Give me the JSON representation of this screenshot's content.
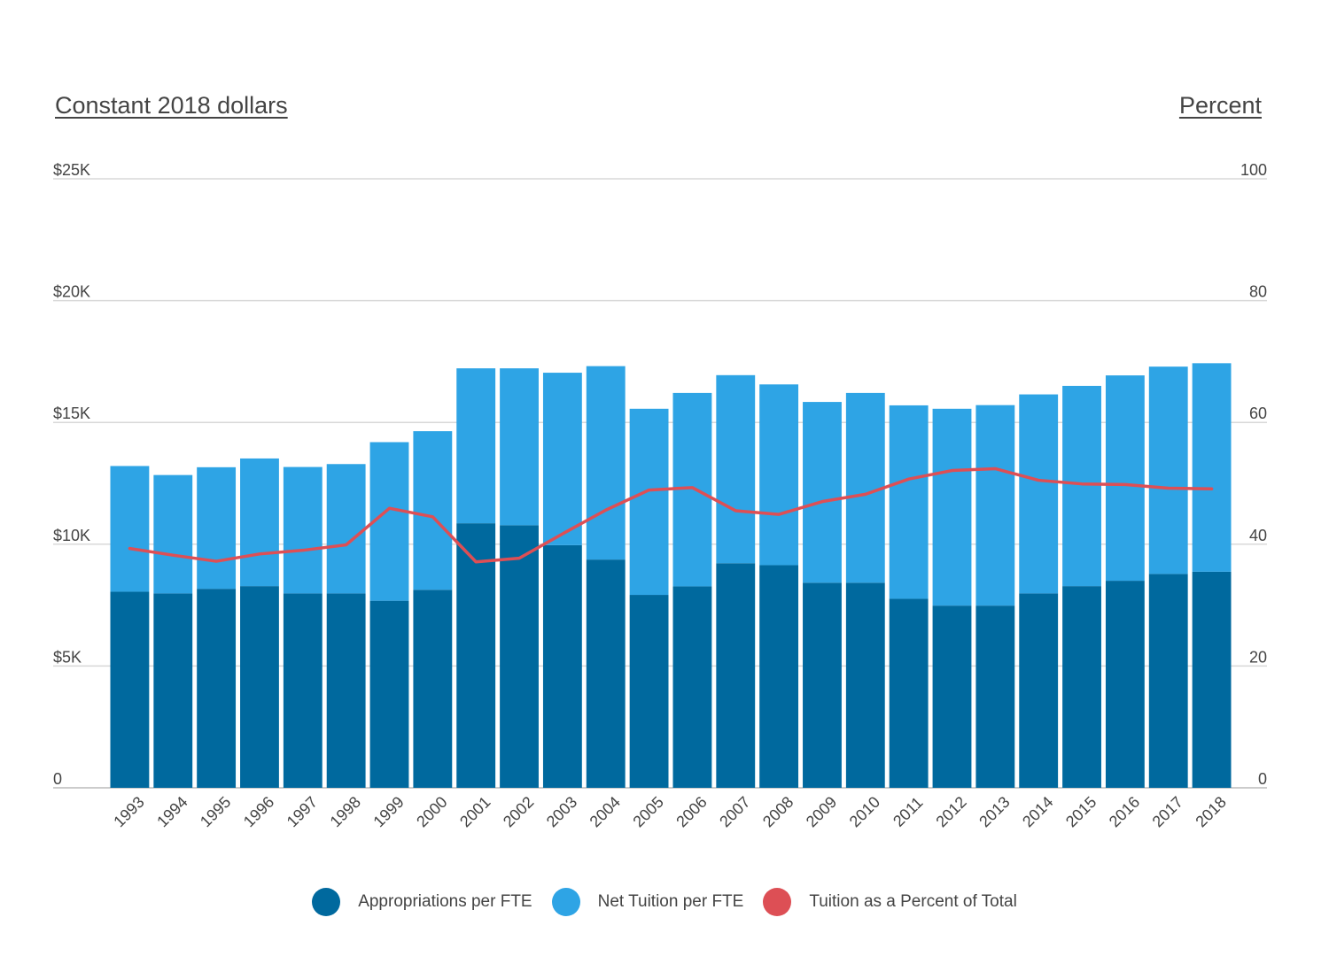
{
  "left_axis_title": "Constant 2018 dollars",
  "right_axis_title": "Percent",
  "colors": {
    "appropriations": "#00699E",
    "net_tuition": "#2EA4E5",
    "percent_line": "#DD4F55",
    "grid": "#D8D8D8",
    "axis_text": "#444444"
  },
  "legend": [
    {
      "label": "Appropriations per FTE",
      "color": "#00699E"
    },
    {
      "label": "Net Tuition per FTE",
      "color": "#2EA4E5"
    },
    {
      "label": "Tuition as a Percent of Total",
      "color": "#DD4F55"
    }
  ],
  "chart_data": {
    "type": "bar",
    "stacked": true,
    "categories": [
      "1993",
      "1994",
      "1995",
      "1996",
      "1997",
      "1998",
      "1999",
      "2000",
      "2001",
      "2002",
      "2003",
      "2004",
      "2005",
      "2006",
      "2007",
      "2008",
      "2009",
      "2010",
      "2011",
      "2012",
      "2013",
      "2014",
      "2015",
      "2016",
      "2017",
      "2018"
    ],
    "series": [
      {
        "name": "Appropriations per FTE",
        "axis": "left",
        "values": [
          8050,
          7980,
          8170,
          8280,
          7980,
          7980,
          7680,
          8130,
          10860,
          10780,
          9960,
          9370,
          7920,
          8270,
          9220,
          9140,
          8420,
          8420,
          7760,
          7480,
          7480,
          7980,
          8280,
          8500,
          8780,
          8870
        ]
      },
      {
        "name": "Net Tuition per FTE",
        "axis": "left",
        "values": [
          5160,
          4860,
          4990,
          5240,
          5190,
          5310,
          6510,
          6510,
          6360,
          6440,
          7080,
          7940,
          7640,
          7940,
          7720,
          7420,
          7420,
          7790,
          7940,
          8080,
          8230,
          8170,
          8220,
          8430,
          8510,
          8560
        ]
      },
      {
        "name": "Tuition as a Percent of Total",
        "axis": "right",
        "type": "line",
        "values": [
          39.3,
          38.2,
          37.2,
          38.4,
          39.0,
          39.9,
          45.9,
          44.5,
          37.1,
          37.7,
          41.7,
          45.6,
          48.9,
          49.3,
          45.5,
          44.9,
          47.0,
          48.2,
          50.7,
          52.1,
          52.4,
          50.5,
          49.9,
          49.8,
          49.2,
          49.1
        ]
      }
    ],
    "y_left": {
      "ticks": [
        "0",
        "$5K",
        "$10K",
        "$15K",
        "$20K",
        "$25K"
      ],
      "ylim": [
        0,
        25000
      ]
    },
    "y_right": {
      "ticks": [
        "0",
        "20",
        "40",
        "60",
        "80",
        "100"
      ],
      "ylim": [
        0,
        100
      ]
    },
    "grid": true,
    "legend_position": "bottom"
  }
}
